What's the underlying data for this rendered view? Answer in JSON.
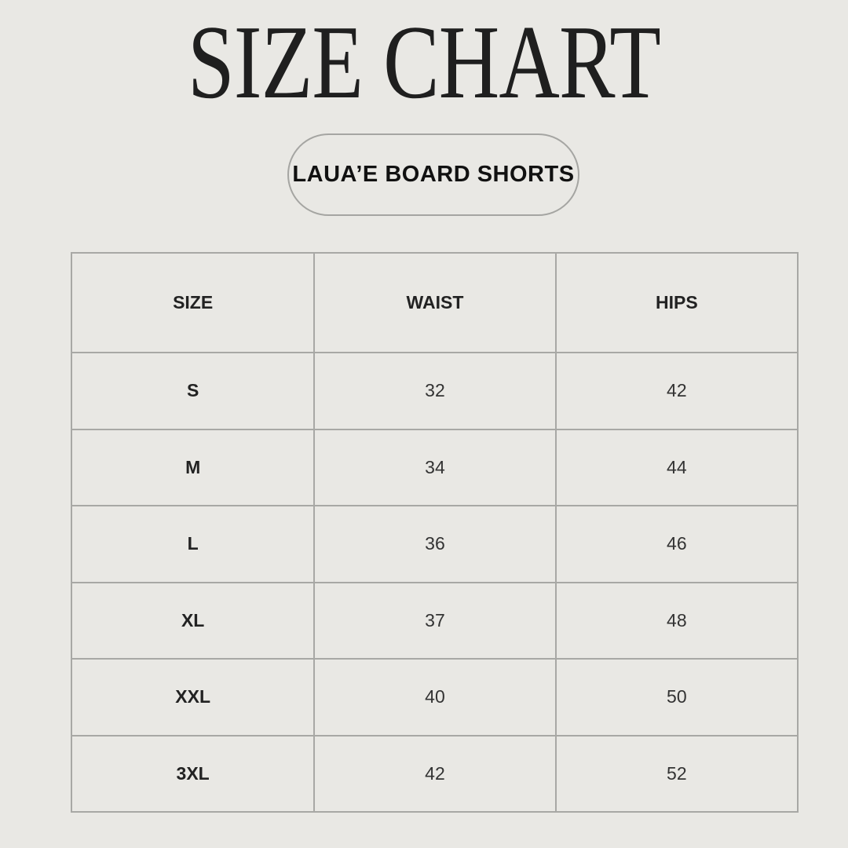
{
  "title": "SIZE CHART",
  "product": "LAUA’E BOARD SHORTS",
  "table": {
    "headers": [
      "SIZE",
      "WAIST",
      "HIPS"
    ],
    "rows": [
      {
        "size": "S",
        "waist": "32",
        "hips": "42"
      },
      {
        "size": "M",
        "waist": "34",
        "hips": "44"
      },
      {
        "size": "L",
        "waist": "36",
        "hips": "46"
      },
      {
        "size": "XL",
        "waist": "37",
        "hips": "48"
      },
      {
        "size": "XXL",
        "waist": "40",
        "hips": "50"
      },
      {
        "size": "3XL",
        "waist": "42",
        "hips": "52"
      }
    ]
  }
}
